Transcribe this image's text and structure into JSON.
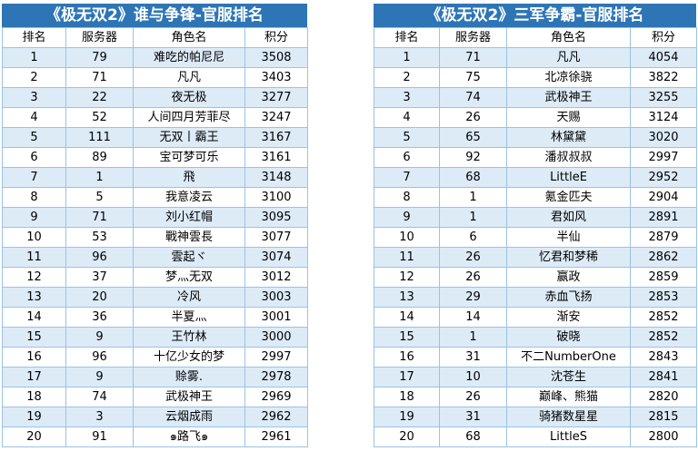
{
  "left_panel": {
    "title": "《极无双2》谁与争锋-官服排名",
    "headers": [
      "排名",
      "服务器",
      "角色名",
      "积分"
    ],
    "rows": [
      [
        "1",
        "79",
        "难吃的帕尼尼",
        "3508"
      ],
      [
        "2",
        "71",
        "凡凡",
        "3403"
      ],
      [
        "3",
        "22",
        "夜无极",
        "3277"
      ],
      [
        "4",
        "52",
        "人间四月芳菲尽",
        "3247"
      ],
      [
        "5",
        "111",
        "无双丨霸王",
        "3167"
      ],
      [
        "6",
        "89",
        "宝可梦可乐",
        "3161"
      ],
      [
        "7",
        "1",
        "飛",
        "3148"
      ],
      [
        "8",
        "5",
        "我意凌云",
        "3100"
      ],
      [
        "9",
        "71",
        "刘小红帽",
        "3095"
      ],
      [
        "10",
        "53",
        "戰神雲長",
        "3077"
      ],
      [
        "11",
        "96",
        "雲起ヾ",
        "3074"
      ],
      [
        "12",
        "37",
        "梦灬无双",
        "3012"
      ],
      [
        "13",
        "20",
        "冷风",
        "3003"
      ],
      [
        "14",
        "36",
        "半夏灬",
        "3001"
      ],
      [
        "15",
        "9",
        "王竹林",
        "3000"
      ],
      [
        "16",
        "96",
        "十亿少女的梦",
        "2997"
      ],
      [
        "17",
        "9",
        "赊雾.",
        "2978"
      ],
      [
        "18",
        "74",
        "武极神王",
        "2969"
      ],
      [
        "19",
        "3",
        "云烟成雨",
        "2962"
      ],
      [
        "20",
        "91",
        "๑路飞๑",
        "2961"
      ]
    ]
  },
  "right_panel": {
    "title": "《极无双2》三军争霸-官服排名",
    "headers": [
      "排名",
      "服务器",
      "角色名",
      "积分"
    ],
    "rows": [
      [
        "1",
        "71",
        "凡凡",
        "4054"
      ],
      [
        "2",
        "75",
        "北凉徐骁",
        "3822"
      ],
      [
        "3",
        "74",
        "武极神王",
        "3255"
      ],
      [
        "4",
        "26",
        "天赐",
        "3124"
      ],
      [
        "5",
        "65",
        "林黛黛",
        "3020"
      ],
      [
        "6",
        "92",
        "潘叔叔叔",
        "2997"
      ],
      [
        "7",
        "68",
        "LittleE",
        "2952"
      ],
      [
        "8",
        "1",
        "氪金匹夫",
        "2904"
      ],
      [
        "9",
        "1",
        "君如风",
        "2891"
      ],
      [
        "10",
        "6",
        "半仙",
        "2879"
      ],
      [
        "11",
        "26",
        "忆君和梦稀",
        "2862"
      ],
      [
        "12",
        "26",
        "赢政",
        "2859"
      ],
      [
        "13",
        "29",
        "赤血飞扬",
        "2853"
      ],
      [
        "14",
        "14",
        "渐安",
        "2852"
      ],
      [
        "15",
        "1",
        "破晓",
        "2852"
      ],
      [
        "16",
        "31",
        "不二NumberOne",
        "2843"
      ],
      [
        "17",
        "10",
        "沈苍生",
        "2841"
      ],
      [
        "18",
        "26",
        "巅峰、熊猫",
        "2820"
      ],
      [
        "19",
        "31",
        "骑猪数星星",
        "2815"
      ],
      [
        "20",
        "68",
        "LittleS",
        "2800"
      ]
    ]
  }
}
